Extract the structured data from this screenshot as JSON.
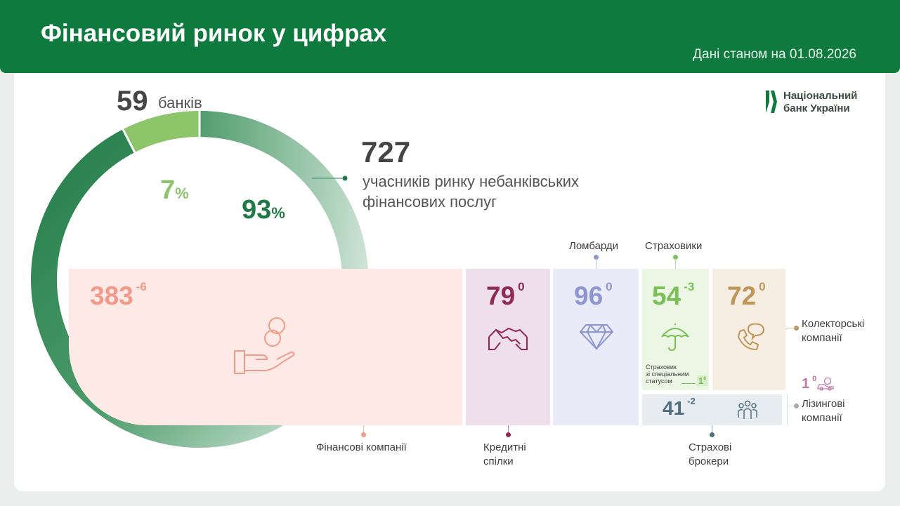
{
  "header": {
    "title": "Фінансовий ринок у цифрах",
    "date": "Дані станом на 01.08.2026"
  },
  "logo": {
    "line1": "Національний",
    "line2": "банк України",
    "icon": "nbu-logo-icon"
  },
  "banks": {
    "value": "59",
    "label": "банків",
    "percent": "7",
    "pct_sign": "%"
  },
  "nonbank": {
    "value": "727",
    "label_line1": "учасників ринку небанківських",
    "label_line2": "фінансових послуг",
    "percent": "93",
    "pct_sign": "%"
  },
  "colors": {
    "header": "#0f7a3e",
    "bank_slice": "#8cc56a",
    "nonbank_slice": "#2f8a55",
    "finance": "#f19a8a",
    "credit": "#8e2a55",
    "pawn": "#8d96cf",
    "insurance": "#7bbf57",
    "collectors": "#c0955a",
    "brokers": "#4e6e80",
    "leasing": "#c277aa"
  },
  "chart_data": {
    "type": "pie",
    "categories": [
      "банків",
      "учасників ринку небанківських фінансових послуг"
    ],
    "values": [
      59,
      727
    ],
    "percents": [
      7,
      93
    ],
    "segments": [
      {
        "label": "Фінансові компанії",
        "value": 383,
        "change": "-6",
        "icon": "hand-coins-icon"
      },
      {
        "label": "Кредитні спілки",
        "value": 79,
        "change": "0",
        "icon": "handshake-icon"
      },
      {
        "label": "Ломбарди",
        "value": 96,
        "change": "0",
        "icon": "diamond-icon"
      },
      {
        "label": "Страховики",
        "value": 54,
        "change": "-3",
        "icon": "umbrella-icon"
      },
      {
        "label": "Колекторські компанії",
        "value": 72,
        "change": "0",
        "icon": "phone-chat-icon"
      },
      {
        "label": "Страхові брокери",
        "value": 41,
        "change": "-2",
        "icon": "people-icon"
      },
      {
        "label": "Лізингові компанії",
        "value": 1,
        "change": "0",
        "icon": "car-coin-icon"
      }
    ],
    "special_insurer": {
      "label_line1": "Страховик",
      "label_line2": "зі спеціальним",
      "label_line3": "статусом",
      "value": "1",
      "change": "0"
    }
  },
  "labels": {
    "finance_line1": "Фінансові компанії",
    "credit_line1": "Кредитні",
    "credit_line2": "спілки",
    "pawn": "Ломбарди",
    "insurance": "Страховики",
    "collectors_line1": "Колекторські",
    "collectors_line2": "компанії",
    "brokers_line1": "Страхові",
    "brokers_line2": "брокери",
    "leasing_line1": "Лізингові",
    "leasing_line2": "компанії"
  }
}
